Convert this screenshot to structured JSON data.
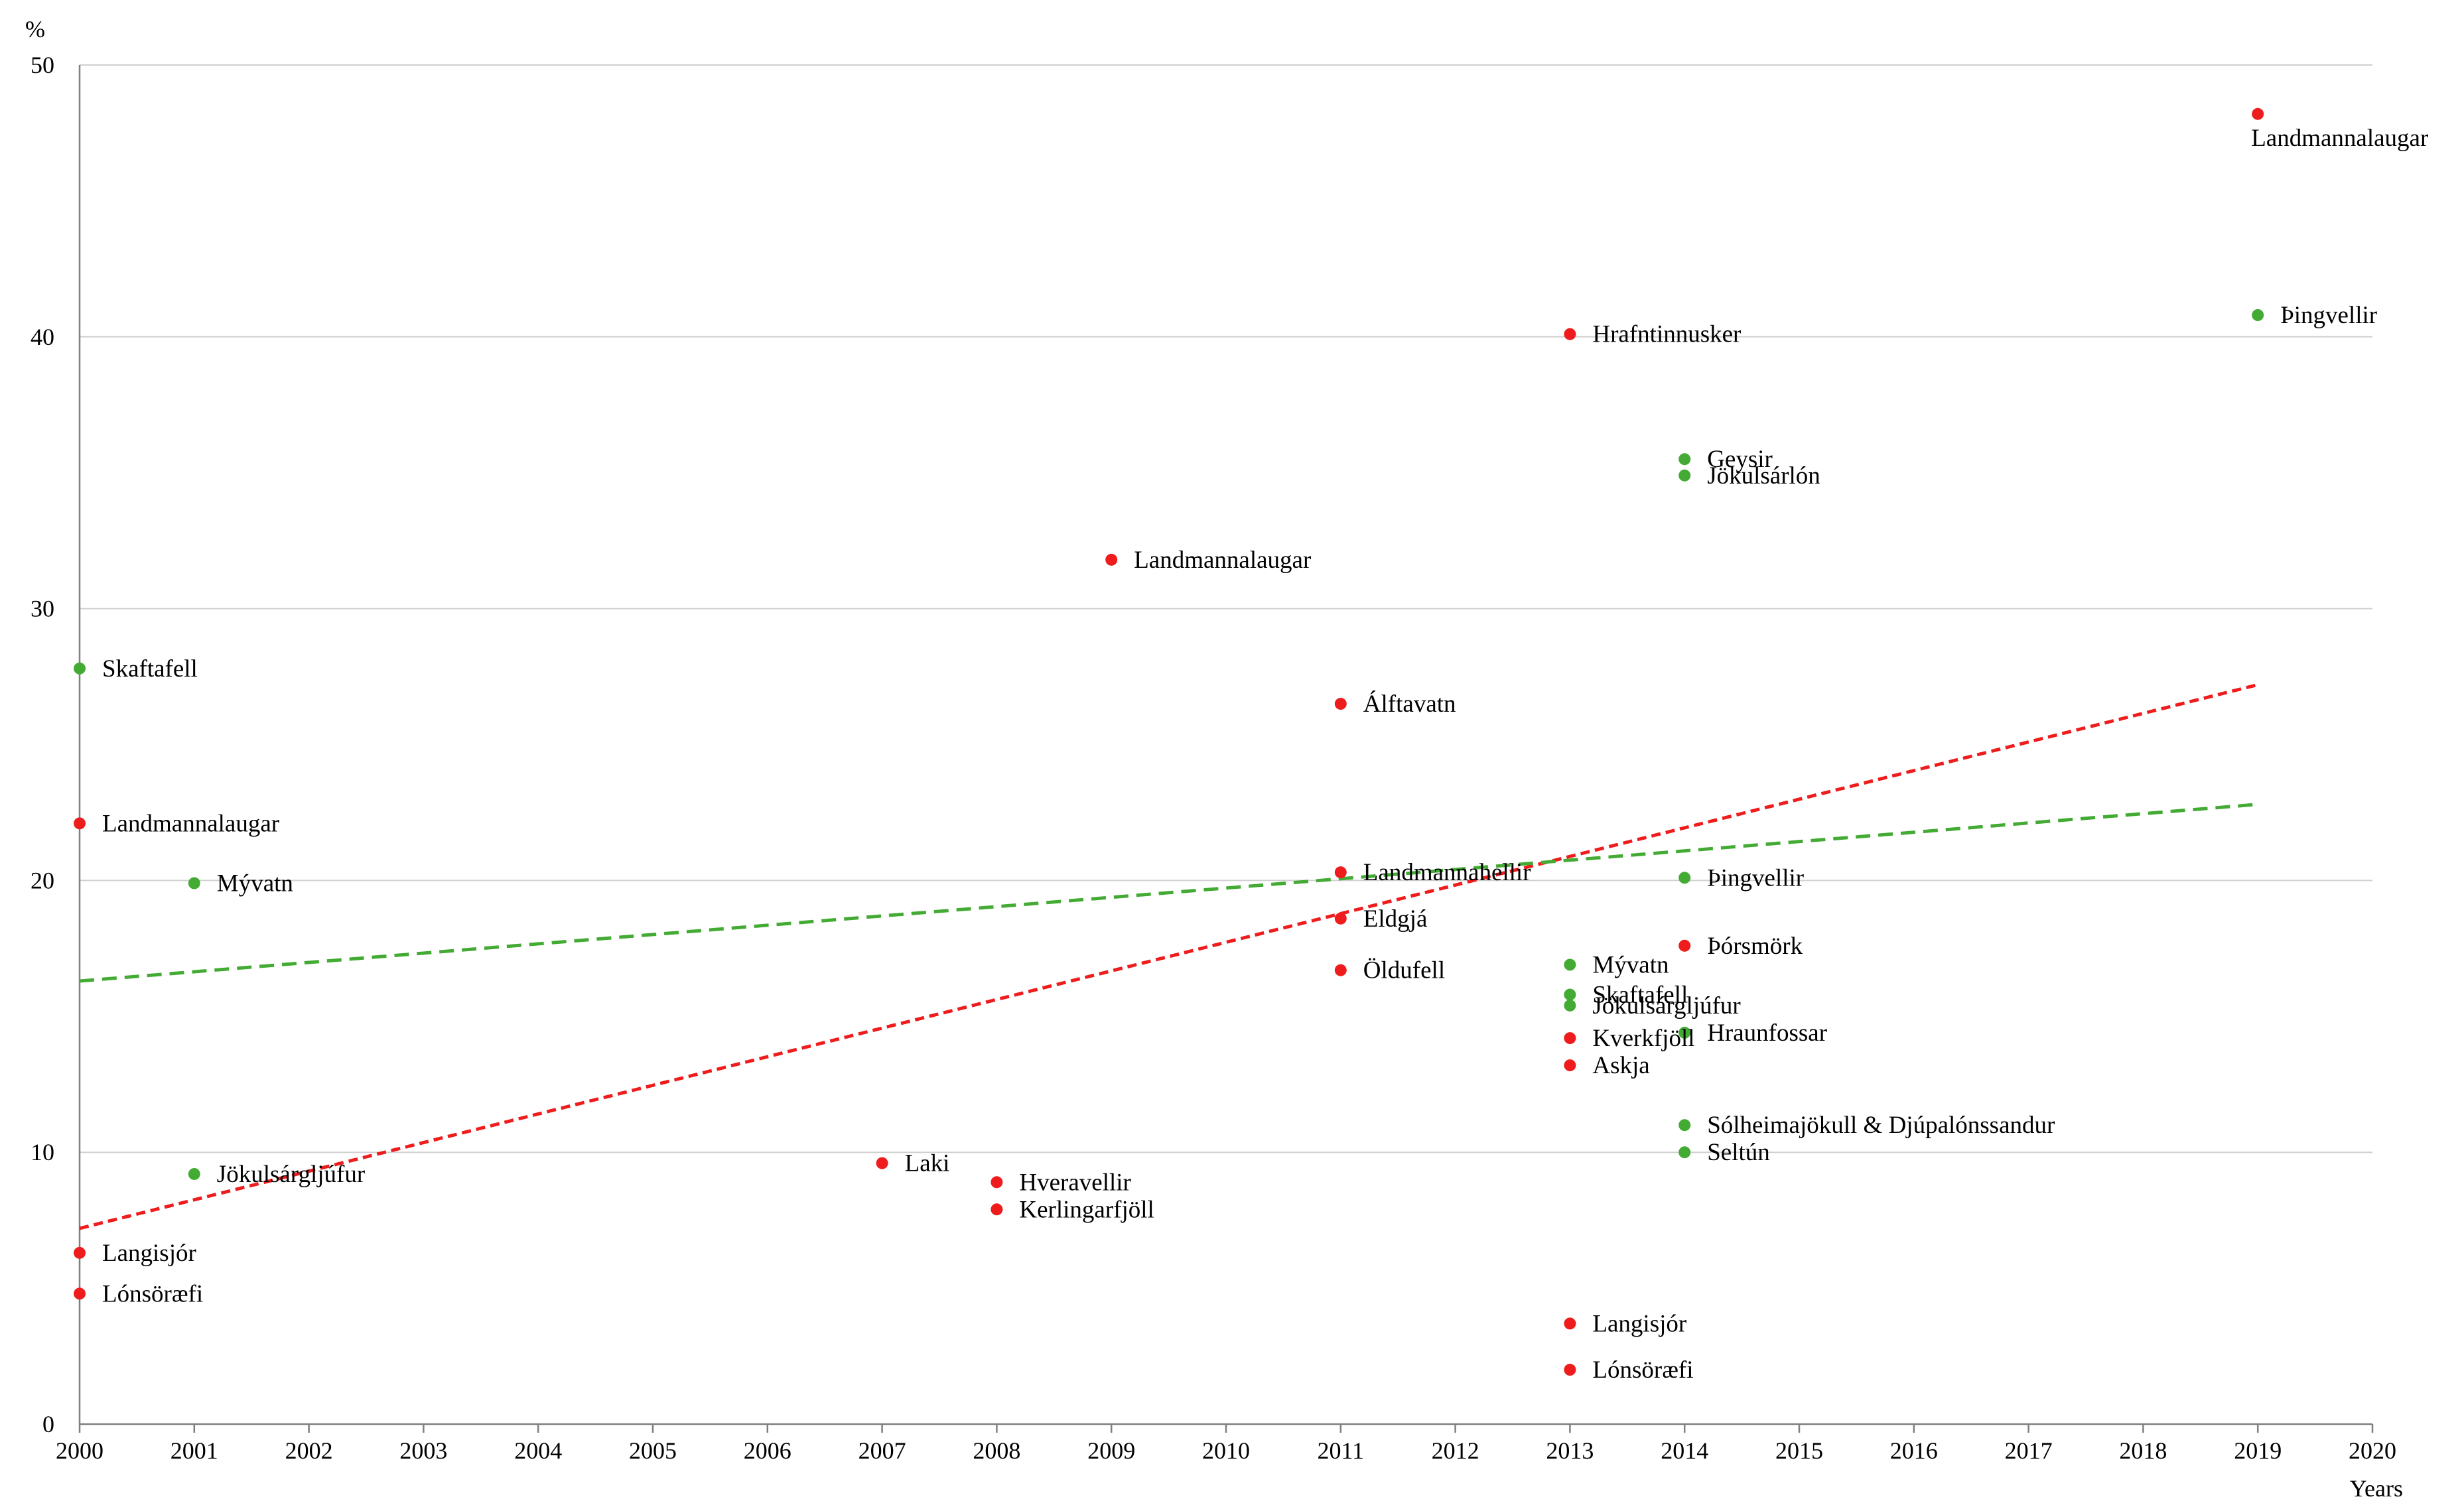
{
  "chart_data": {
    "type": "scatter",
    "ylabel": "%",
    "xlabel": "Years",
    "xlim": [
      2000,
      2020
    ],
    "ylim": [
      0,
      50
    ],
    "x_ticks": [
      "2000",
      "2001",
      "2002",
      "2003",
      "2004",
      "2005",
      "2006",
      "2007",
      "2008",
      "2009",
      "2010",
      "2011",
      "2012",
      "2013",
      "2014",
      "2015",
      "2016",
      "2017",
      "2018",
      "2019",
      "2020"
    ],
    "y_ticks": [
      "0",
      "10",
      "20",
      "30",
      "40",
      "50"
    ],
    "grid": "horizontal",
    "colors": {
      "red": "#ee1c1c",
      "green": "#43ab34",
      "grid": "#d0d0d0",
      "axis": "#7f7f7f"
    },
    "series": [
      {
        "name": "red",
        "color": "#ee1c1c",
        "points": [
          {
            "x": 2000,
            "y": 22.1,
            "label": "Landmannalaugar"
          },
          {
            "x": 2000,
            "y": 6.3,
            "label": "Langisjór"
          },
          {
            "x": 2000,
            "y": 4.8,
            "label": "Lónsöræfi"
          },
          {
            "x": 2007,
            "y": 9.6,
            "label": "Laki"
          },
          {
            "x": 2008,
            "y": 8.9,
            "label": "Hveravellir"
          },
          {
            "x": 2008,
            "y": 7.9,
            "label": "Kerlingarfjöll"
          },
          {
            "x": 2009,
            "y": 31.8,
            "label": "Landmannalaugar"
          },
          {
            "x": 2011,
            "y": 26.5,
            "label": "Álftavatn"
          },
          {
            "x": 2011,
            "y": 20.3,
            "label": "Landmannahellir"
          },
          {
            "x": 2011,
            "y": 18.6,
            "label": "Eldgjá"
          },
          {
            "x": 2011,
            "y": 16.7,
            "label": "Öldufell"
          },
          {
            "x": 2013,
            "y": 40.1,
            "label": "Hrafntinnusker"
          },
          {
            "x": 2013,
            "y": 14.2,
            "label": "Kverkfjöll"
          },
          {
            "x": 2013,
            "y": 13.2,
            "label": "Askja"
          },
          {
            "x": 2013,
            "y": 3.7,
            "label": "Langisjór"
          },
          {
            "x": 2013,
            "y": 2.0,
            "label": "Lónsöræfi"
          },
          {
            "x": 2014,
            "y": 17.6,
            "label": "Þórsmörk"
          },
          {
            "x": 2019,
            "y": 48.2,
            "label": "Landmannalaugar"
          }
        ],
        "trend": {
          "x": [
            2000,
            2019
          ],
          "y": [
            7.2,
            27.2
          ]
        }
      },
      {
        "name": "green",
        "color": "#43ab34",
        "points": [
          {
            "x": 2000,
            "y": 27.8,
            "label": "Skaftafell"
          },
          {
            "x": 2001,
            "y": 19.9,
            "label": "Mývatn"
          },
          {
            "x": 2001,
            "y": 9.2,
            "label": "Jökulsárgljúfur"
          },
          {
            "x": 2013,
            "y": 16.9,
            "label": "Mývatn"
          },
          {
            "x": 2013,
            "y": 15.8,
            "label": "Skaftafell"
          },
          {
            "x": 2013,
            "y": 15.4,
            "label": "Jökulsárgljúfur"
          },
          {
            "x": 2014,
            "y": 35.5,
            "label": "Geysir"
          },
          {
            "x": 2014,
            "y": 34.9,
            "label": "Jökulsárlón"
          },
          {
            "x": 2014,
            "y": 20.1,
            "label": "Þingvellir"
          },
          {
            "x": 2014,
            "y": 14.4,
            "label": "Hraunfossar"
          },
          {
            "x": 2014,
            "y": 11.0,
            "label": "Sólheimajökull & Djúpalónssandur"
          },
          {
            "x": 2014,
            "y": 10.0,
            "label": "Seltún"
          },
          {
            "x": 2019,
            "y": 40.8,
            "label": "Þingvellir"
          }
        ],
        "trend": {
          "x": [
            2000,
            2019
          ],
          "y": [
            16.3,
            22.8
          ]
        }
      }
    ]
  }
}
